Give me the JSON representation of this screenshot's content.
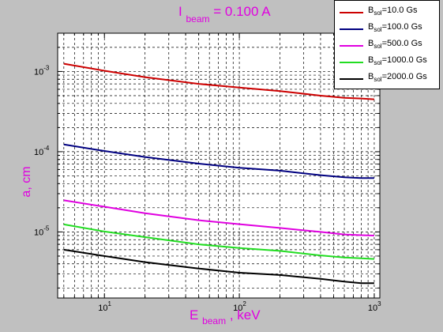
{
  "chart_data": {
    "type": "line",
    "title": {
      "main": "I",
      "sub": "beam",
      "rest": " = 0.100 A"
    },
    "xlabel": {
      "main": "E",
      "sub": "beam",
      "rest": ", keV"
    },
    "ylabel": "a, cm",
    "xscale": "log",
    "yscale": "log",
    "xlim": [
      4.5,
      1100
    ],
    "ylim": [
      1.5e-06,
      0.003
    ],
    "x_ticks": [
      {
        "value": 10,
        "base": "10",
        "exp": "1"
      },
      {
        "value": 100,
        "base": "10",
        "exp": "2"
      },
      {
        "value": 1000,
        "base": "10",
        "exp": "3"
      }
    ],
    "y_ticks": [
      {
        "value": 1e-05,
        "base": "10",
        "exp": "-5"
      },
      {
        "value": 0.0001,
        "base": "10",
        "exp": "-4"
      },
      {
        "value": 0.001,
        "base": "10",
        "exp": "-3"
      }
    ],
    "grid": true,
    "legend_position": "top-right",
    "x": [
      5,
      10,
      20,
      50,
      100,
      200,
      400,
      600,
      800,
      1000
    ],
    "series": [
      {
        "label_main": "B",
        "label_sub": "sol",
        "label_rest": "=10.0 Gs",
        "color": "#cc0000",
        "values": [
          0.00125,
          0.00102,
          0.00085,
          0.0007,
          0.00063,
          0.00057,
          0.0005,
          0.00047,
          0.00046,
          0.00045
        ]
      },
      {
        "label_main": "B",
        "label_sub": "sol",
        "label_rest": "=100.0 Gs",
        "color": "#000080",
        "values": [
          0.000123,
          0.000102,
          8.6e-05,
          7.1e-05,
          6.3e-05,
          5.8e-05,
          5.1e-05,
          4.8e-05,
          4.7e-05,
          4.7e-05
        ]
      },
      {
        "label_main": "B",
        "label_sub": "sol",
        "label_rest": "=500.0 Gs",
        "color": "#e000e0",
        "values": [
          2.48e-05,
          2.06e-05,
          1.71e-05,
          1.4e-05,
          1.25e-05,
          1.12e-05,
          1e-05,
          9.3e-06,
          9.1e-06,
          9e-06
        ]
      },
      {
        "label_main": "B",
        "label_sub": "sol",
        "label_rest": "=1000.0 Gs",
        "color": "#22dd22",
        "values": [
          1.24e-05,
          1.01e-05,
          8.6e-06,
          7e-06,
          6.3e-06,
          5.8e-06,
          5.1e-06,
          4.8e-06,
          4.7e-06,
          4.6e-06
        ]
      },
      {
        "label_main": "B",
        "label_sub": "sol",
        "label_rest": "=2000.0 Gs",
        "color": "#000000",
        "values": [
          6e-06,
          5e-06,
          4.2e-06,
          3.5e-06,
          3.1e-06,
          2.9e-06,
          2.6e-06,
          2.4e-06,
          2.3e-06,
          2.3e-06
        ]
      }
    ]
  }
}
